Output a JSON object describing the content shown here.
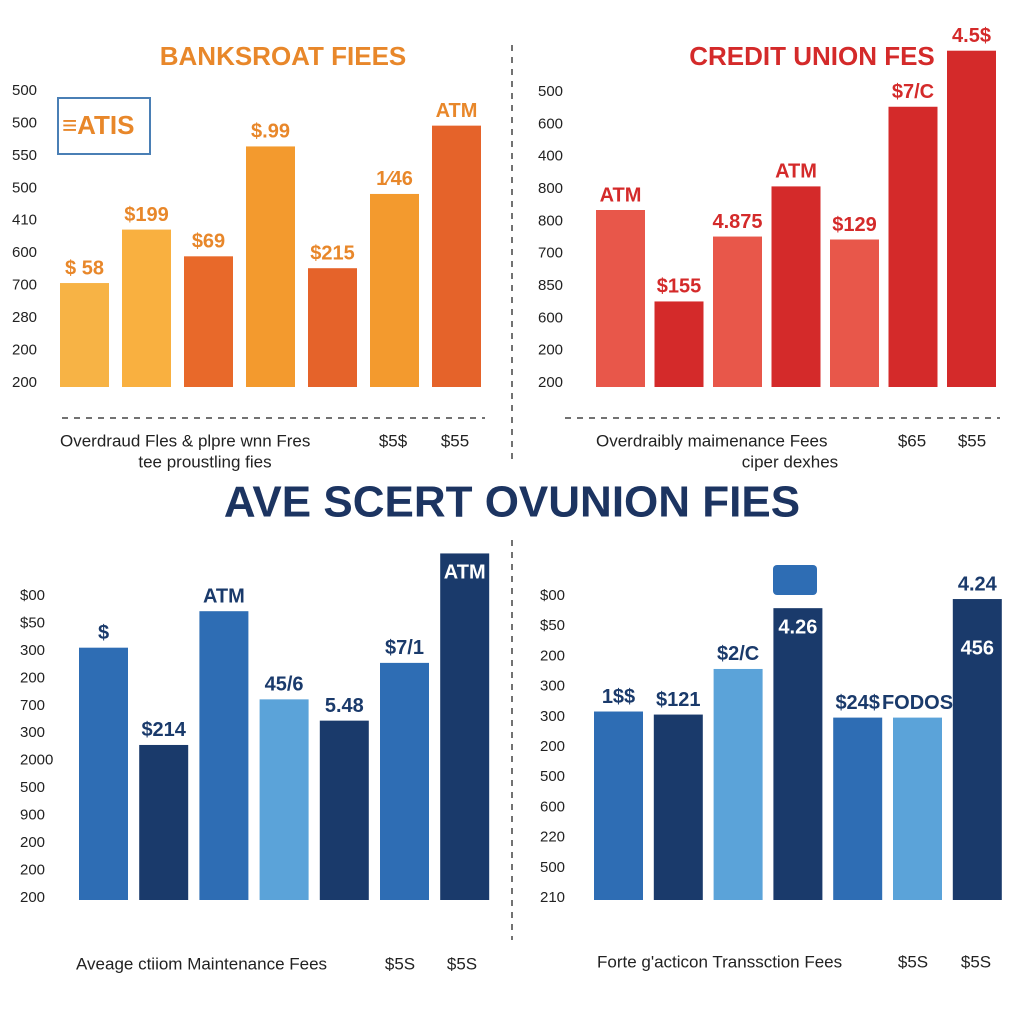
{
  "title": "AVE SCERT OVUNION FIES",
  "chart_data": [
    {
      "type": "bar",
      "title": "BANKSROAT FIEES",
      "axis_labels": [
        "500",
        "500",
        "550",
        "500",
        "410",
        "600",
        "700",
        "280",
        "200",
        "200"
      ],
      "values": [
        35,
        53,
        44,
        81,
        40,
        65,
        88
      ],
      "value_labels": [
        "$ 58",
        "$199",
        "$69",
        "$.99",
        "$215",
        "1⁄46",
        "ATM"
      ],
      "colors": [
        "#f7b345",
        "#f9b040",
        "#e8692a",
        "#f39a2e",
        "#e5632a",
        "#f39a2e",
        "#e5632a"
      ],
      "ylim": [
        0,
        100
      ],
      "footer": [
        "Overdraud Fles & plpre wnn Fres",
        "tee proustling fies",
        "$5$",
        "$55"
      ]
    },
    {
      "type": "bar",
      "title": "CREDIT UNION FES",
      "axis_labels": [
        "500",
        "600",
        "400",
        "800",
        "800",
        "700",
        "850",
        "600",
        "200",
        "200"
      ],
      "values": [
        60,
        29,
        51,
        68,
        50,
        95,
        114
      ],
      "value_labels": [
        "ATM",
        "$155",
        "4.875",
        "ATM",
        "$129",
        "$7/C",
        "4.5$"
      ],
      "colors": [
        "#e8574a",
        "#d42a2a",
        "#e8574a",
        "#d42a2a",
        "#e8574a",
        "#d42a2a",
        "#d42a2a"
      ],
      "ylim": [
        0,
        120
      ],
      "footer": [
        "Overdraibly maimenance Fees",
        "ciper dexhes",
        "$65",
        "$55"
      ]
    },
    {
      "type": "bar",
      "axis_labels": [
        "$00",
        "$50",
        "300",
        "200",
        "700",
        "300",
        "2000",
        "500",
        "900",
        "200",
        "200",
        "200"
      ],
      "values": [
        83,
        51,
        95,
        66,
        59,
        78,
        114
      ],
      "value_labels": [
        "$",
        "$214",
        "ATM",
        "45/6",
        "5.48",
        "$7/1",
        "ATM"
      ],
      "colors": [
        "#2e6db4",
        "#1a3a6b",
        "#2e6db4",
        "#5ba3d9",
        "#1a3a6b",
        "#2e6db4",
        "#1a3a6b"
      ],
      "ylim": [
        0,
        120
      ],
      "footer": [
        "Aveage ctiiom Maintenance Fees",
        "$5S",
        "$5S"
      ]
    },
    {
      "type": "bar",
      "axis_labels": [
        "$00",
        "$50",
        "200",
        "300",
        "300",
        "200",
        "500",
        "600",
        "220",
        "500",
        "210"
      ],
      "values": [
        62,
        61,
        76,
        96,
        60,
        60,
        99
      ],
      "value_labels": [
        "1$$",
        "$121",
        "$2/C",
        "4.26",
        "$24$",
        "FODOS",
        "4.24"
      ],
      "colors": [
        "#2e6db4",
        "#1a3a6b",
        "#5ba3d9",
        "#1a3a6b",
        "#2e6db4",
        "#5ba3d9",
        "#1a3a6b"
      ],
      "ylim": [
        0,
        120
      ],
      "annotations": [
        "456"
      ],
      "footer": [
        "Forte g'acticon Transsction Fees",
        "$5S",
        "$5S"
      ]
    }
  ]
}
